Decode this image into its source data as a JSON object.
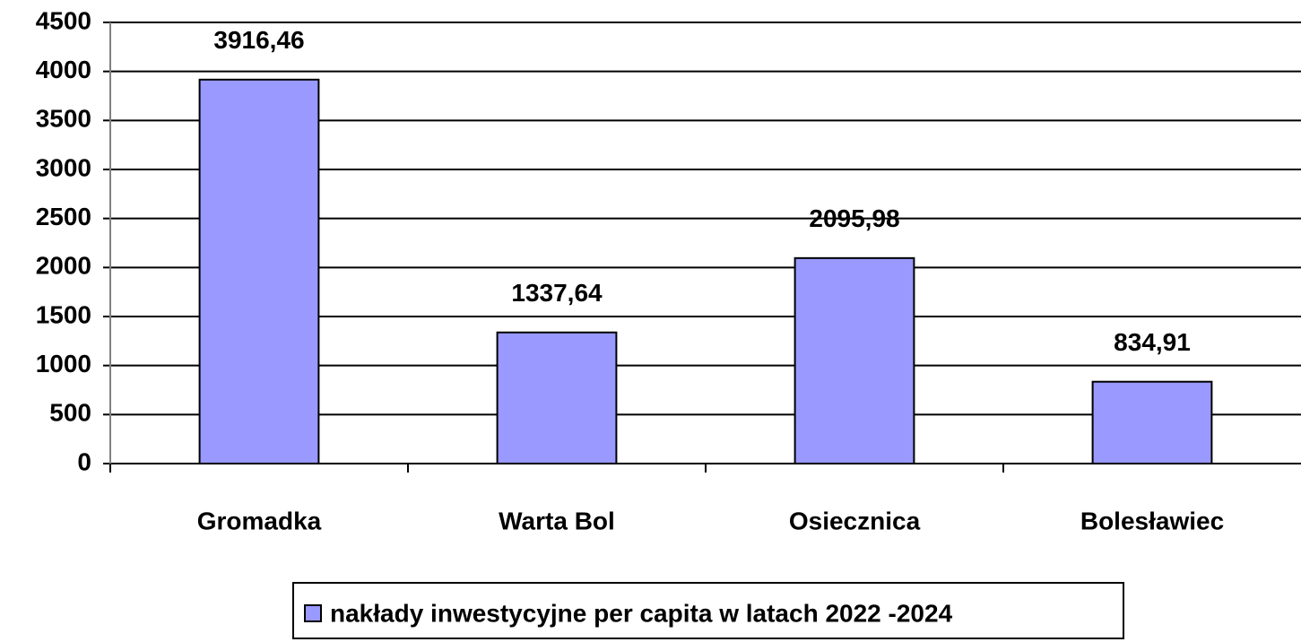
{
  "chart_data": {
    "type": "bar",
    "categories": [
      "Gromadka",
      "Warta Bol",
      "Osiecznica",
      "Bolesławiec"
    ],
    "series": [
      {
        "name": "nakłady inwestycyjne per capita w latach 2022 -2024",
        "color": "#9999ff",
        "values": [
          3916.46,
          1337.64,
          2095.98,
          834.91
        ],
        "value_labels": [
          "3916,46",
          "1337,64",
          "2095,98",
          "834,91"
        ]
      }
    ],
    "ylim": [
      0,
      4500
    ],
    "yticks": [
      0,
      500,
      1000,
      1500,
      2000,
      2500,
      3000,
      3500,
      4000,
      4500
    ],
    "grid": true,
    "legend": "bottom"
  }
}
